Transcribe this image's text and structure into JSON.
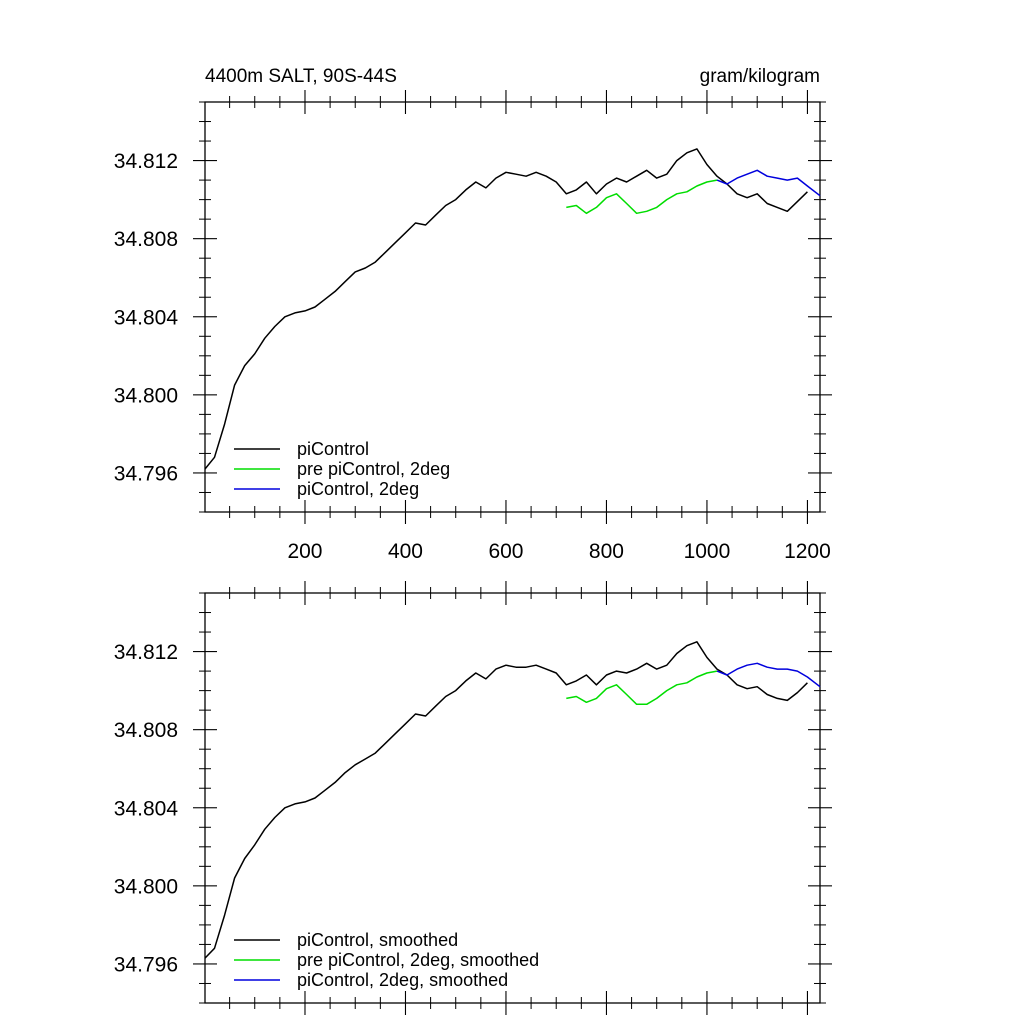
{
  "chart_data": [
    {
      "type": "line",
      "title_left": "4400m SALT, 90S-44S",
      "title_right": "gram/kilogram",
      "xlabel": "",
      "ylabel": "",
      "xlim": [
        1,
        1225
      ],
      "ylim": [
        34.794,
        34.815
      ],
      "xticks": [
        200,
        400,
        600,
        800,
        1000,
        1200
      ],
      "xtick_labels": [
        "200",
        "400",
        "600",
        "800",
        "1000",
        "1200"
      ],
      "yticks": [
        34.796,
        34.8,
        34.804,
        34.808,
        34.812
      ],
      "ytick_labels": [
        "34.796",
        "34.800",
        "34.804",
        "34.808",
        "34.812"
      ],
      "legend_position": "bottom-left",
      "series": [
        {
          "name": "piControl",
          "color": "#000000",
          "x": [
            1,
            20,
            40,
            60,
            80,
            100,
            120,
            140,
            160,
            180,
            200,
            220,
            240,
            260,
            280,
            300,
            320,
            340,
            360,
            380,
            400,
            420,
            440,
            460,
            480,
            500,
            520,
            540,
            560,
            580,
            600,
            620,
            640,
            660,
            680,
            700,
            720,
            740,
            760,
            780,
            800,
            820,
            840,
            860,
            880,
            900,
            920,
            940,
            960,
            980,
            1000,
            1020,
            1040,
            1060,
            1080,
            1100,
            1120,
            1140,
            1160,
            1180,
            1200
          ],
          "y": [
            34.7962,
            34.7968,
            34.7985,
            34.8005,
            34.8015,
            34.8021,
            34.8029,
            34.8035,
            34.804,
            34.8042,
            34.8043,
            34.8045,
            34.8049,
            34.8053,
            34.8058,
            34.8063,
            34.8065,
            34.8068,
            34.8073,
            34.8078,
            34.8083,
            34.8088,
            34.8087,
            34.8092,
            34.8097,
            34.81,
            34.8105,
            34.8109,
            34.8106,
            34.8111,
            34.8114,
            34.8113,
            34.8112,
            34.8114,
            34.8112,
            34.8109,
            34.8103,
            34.8105,
            34.8109,
            34.8103,
            34.8108,
            34.8111,
            34.8109,
            34.8112,
            34.8115,
            34.8111,
            34.8113,
            34.812,
            34.8124,
            34.8126,
            34.8118,
            34.8112,
            34.8108,
            34.8103,
            34.8101,
            34.8103,
            34.8098,
            34.8096,
            34.8094,
            34.8099,
            34.8104
          ]
        },
        {
          "name": "pre piControl, 2deg",
          "color": "#00dd00",
          "x": [
            720,
            740,
            760,
            780,
            800,
            820,
            840,
            860,
            880,
            900,
            920,
            940,
            960,
            980,
            1000,
            1020
          ],
          "y": [
            34.8096,
            34.8097,
            34.8093,
            34.8096,
            34.8101,
            34.8103,
            34.8098,
            34.8093,
            34.8094,
            34.8096,
            34.81,
            34.8103,
            34.8104,
            34.8107,
            34.8109,
            34.811
          ]
        },
        {
          "name": "piControl, 2deg",
          "color": "#0000dd",
          "x": [
            1020,
            1040,
            1060,
            1080,
            1100,
            1120,
            1140,
            1160,
            1180,
            1200,
            1225
          ],
          "y": [
            34.811,
            34.8108,
            34.8111,
            34.8113,
            34.8115,
            34.8112,
            34.8111,
            34.811,
            34.8111,
            34.8107,
            34.8102
          ]
        }
      ]
    },
    {
      "type": "line",
      "title_left": "",
      "title_right": "",
      "xlabel": "",
      "ylabel": "",
      "xlim": [
        1,
        1225
      ],
      "ylim": [
        34.794,
        34.815
      ],
      "xticks": [
        200,
        400,
        600,
        800,
        1000,
        1200
      ],
      "xtick_labels": [],
      "yticks": [
        34.796,
        34.8,
        34.804,
        34.808,
        34.812
      ],
      "ytick_labels": [
        "34.796",
        "34.800",
        "34.804",
        "34.808",
        "34.812"
      ],
      "legend_position": "bottom-left",
      "series": [
        {
          "name": "piControl, smoothed",
          "color": "#000000",
          "x": [
            1,
            20,
            40,
            60,
            80,
            100,
            120,
            140,
            160,
            180,
            200,
            220,
            240,
            260,
            280,
            300,
            320,
            340,
            360,
            380,
            400,
            420,
            440,
            460,
            480,
            500,
            520,
            540,
            560,
            580,
            600,
            620,
            640,
            660,
            680,
            700,
            720,
            740,
            760,
            780,
            800,
            820,
            840,
            860,
            880,
            900,
            920,
            940,
            960,
            980,
            1000,
            1020,
            1040,
            1060,
            1080,
            1100,
            1120,
            1140,
            1160,
            1180,
            1200
          ],
          "y": [
            34.7963,
            34.7968,
            34.7985,
            34.8004,
            34.8014,
            34.8021,
            34.8029,
            34.8035,
            34.804,
            34.8042,
            34.8043,
            34.8045,
            34.8049,
            34.8053,
            34.8058,
            34.8062,
            34.8065,
            34.8068,
            34.8073,
            34.8078,
            34.8083,
            34.8088,
            34.8087,
            34.8092,
            34.8097,
            34.81,
            34.8105,
            34.8109,
            34.8106,
            34.8111,
            34.8113,
            34.8112,
            34.8112,
            34.8113,
            34.8111,
            34.8109,
            34.8103,
            34.8105,
            34.8108,
            34.8103,
            34.8108,
            34.811,
            34.8109,
            34.8111,
            34.8114,
            34.8111,
            34.8113,
            34.8119,
            34.8123,
            34.8125,
            34.8117,
            34.8111,
            34.8108,
            34.8103,
            34.8101,
            34.8102,
            34.8098,
            34.8096,
            34.8095,
            34.8099,
            34.8104
          ]
        },
        {
          "name": "pre piControl, 2deg, smoothed",
          "color": "#00dd00",
          "x": [
            720,
            740,
            760,
            780,
            800,
            820,
            840,
            860,
            880,
            900,
            920,
            940,
            960,
            980,
            1000,
            1020
          ],
          "y": [
            34.8096,
            34.8097,
            34.8094,
            34.8096,
            34.8101,
            34.8103,
            34.8098,
            34.8093,
            34.8093,
            34.8096,
            34.81,
            34.8103,
            34.8104,
            34.8107,
            34.8109,
            34.811
          ]
        },
        {
          "name": "piControl, 2deg, smoothed",
          "color": "#0000dd",
          "x": [
            1020,
            1040,
            1060,
            1080,
            1100,
            1120,
            1140,
            1160,
            1180,
            1200,
            1225
          ],
          "y": [
            34.811,
            34.8108,
            34.8111,
            34.8113,
            34.8114,
            34.8112,
            34.8111,
            34.8111,
            34.811,
            34.8107,
            34.8102
          ]
        }
      ]
    }
  ]
}
